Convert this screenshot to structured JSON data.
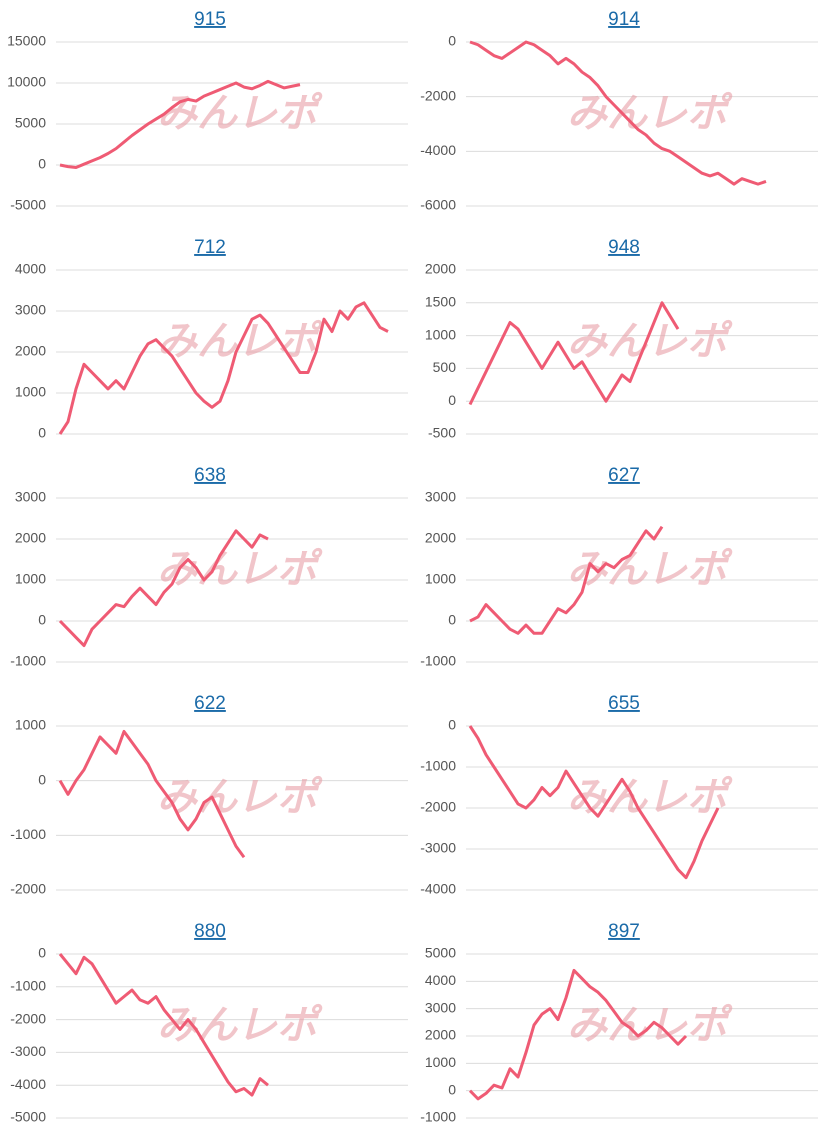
{
  "chart_data": [
    {
      "type": "line",
      "title": "915",
      "watermark": "みんレポ",
      "color": "#ef5b74",
      "grid": true,
      "ylim": [
        -5000,
        15000
      ],
      "yticks": [
        15000,
        10000,
        5000,
        0,
        -5000
      ],
      "values": [
        0,
        -200,
        -300,
        100,
        500,
        900,
        1400,
        2000,
        2800,
        3600,
        4300,
        5000,
        5600,
        6200,
        7000,
        7700,
        8000,
        7800,
        8400,
        8800,
        9200,
        9600,
        10000,
        9500,
        9300,
        9700,
        10200,
        9800,
        9400,
        9600,
        9800
      ]
    },
    {
      "type": "line",
      "title": "914",
      "watermark": "みんレポ",
      "color": "#ef5b74",
      "grid": true,
      "ylim": [
        -6000,
        0
      ],
      "yticks": [
        0,
        -2000,
        -4000,
        -6000
      ],
      "values": [
        0,
        -100,
        -300,
        -500,
        -600,
        -400,
        -200,
        0,
        -100,
        -300,
        -500,
        -800,
        -600,
        -800,
        -1100,
        -1300,
        -1600,
        -2000,
        -2300,
        -2600,
        -2900,
        -3200,
        -3400,
        -3700,
        -3900,
        -4000,
        -4200,
        -4400,
        -4600,
        -4800,
        -4900,
        -4800,
        -5000,
        -5200,
        -5000,
        -5100,
        -5200,
        -5100
      ]
    },
    {
      "type": "line",
      "title": "712",
      "watermark": "みんレポ",
      "color": "#ef5b74",
      "grid": true,
      "ylim": [
        0,
        4000
      ],
      "yticks": [
        4000,
        3000,
        2000,
        1000,
        0
      ],
      "values": [
        0,
        300,
        1100,
        1700,
        1500,
        1300,
        1100,
        1300,
        1100,
        1500,
        1900,
        2200,
        2300,
        2100,
        1900,
        1600,
        1300,
        1000,
        800,
        650,
        800,
        1300,
        2000,
        2400,
        2800,
        2900,
        2700,
        2400,
        2100,
        1800,
        1500,
        1500,
        2000,
        2800,
        2500,
        3000,
        2800,
        3100,
        3200,
        2900,
        2600,
        2500
      ]
    },
    {
      "type": "line",
      "title": "948",
      "watermark": "みんレポ",
      "color": "#ef5b74",
      "grid": true,
      "ylim": [
        -500,
        2000
      ],
      "yticks": [
        2000,
        1500,
        1000,
        500,
        0,
        -500
      ],
      "values": [
        -50,
        200,
        450,
        700,
        950,
        1200,
        1100,
        900,
        700,
        500,
        700,
        900,
        700,
        500,
        600,
        400,
        200,
        0,
        200,
        400,
        300,
        600,
        900,
        1200,
        1500,
        1300,
        1100
      ]
    },
    {
      "type": "line",
      "title": "638",
      "watermark": "みんレポ",
      "color": "#ef5b74",
      "grid": true,
      "ylim": [
        -1000,
        3000
      ],
      "yticks": [
        3000,
        2000,
        1000,
        0,
        -1000
      ],
      "values": [
        0,
        -200,
        -400,
        -600,
        -200,
        0,
        200,
        400,
        350,
        600,
        800,
        600,
        400,
        700,
        900,
        1300,
        1500,
        1300,
        1000,
        1200,
        1600,
        1900,
        2200,
        2000,
        1800,
        2100,
        2000
      ]
    },
    {
      "type": "line",
      "title": "627",
      "watermark": "みんレポ",
      "color": "#ef5b74",
      "grid": true,
      "ylim": [
        -1000,
        3000
      ],
      "yticks": [
        3000,
        2000,
        1000,
        0,
        -1000
      ],
      "values": [
        0,
        100,
        400,
        200,
        0,
        -200,
        -300,
        -100,
        -300,
        -300,
        0,
        300,
        200,
        400,
        700,
        1400,
        1200,
        1400,
        1300,
        1500,
        1600,
        1900,
        2200,
        2000,
        2300
      ]
    },
    {
      "type": "line",
      "title": "622",
      "watermark": "みんレポ",
      "color": "#ef5b74",
      "grid": true,
      "ylim": [
        -2000,
        1000
      ],
      "yticks": [
        1000,
        0,
        -1000,
        -2000
      ],
      "values": [
        0,
        -250,
        0,
        200,
        500,
        800,
        650,
        500,
        900,
        700,
        500,
        300,
        0,
        -200,
        -400,
        -700,
        -900,
        -700,
        -400,
        -300,
        -600,
        -900,
        -1200,
        -1400
      ]
    },
    {
      "type": "line",
      "title": "655",
      "watermark": "みんレポ",
      "color": "#ef5b74",
      "grid": true,
      "ylim": [
        -4000,
        0
      ],
      "yticks": [
        0,
        -1000,
        -2000,
        -3000,
        -4000
      ],
      "values": [
        0,
        -300,
        -700,
        -1000,
        -1300,
        -1600,
        -1900,
        -2000,
        -1800,
        -1500,
        -1700,
        -1500,
        -1100,
        -1400,
        -1700,
        -2000,
        -2200,
        -1900,
        -1600,
        -1300,
        -1600,
        -2000,
        -2300,
        -2600,
        -2900,
        -3200,
        -3500,
        -3700,
        -3300,
        -2800,
        -2400,
        -2000
      ]
    },
    {
      "type": "line",
      "title": "880",
      "watermark": "みんレポ",
      "color": "#ef5b74",
      "grid": true,
      "ylim": [
        -5000,
        0
      ],
      "yticks": [
        0,
        -1000,
        -2000,
        -3000,
        -4000,
        -5000
      ],
      "values": [
        0,
        -300,
        -600,
        -100,
        -300,
        -700,
        -1100,
        -1500,
        -1300,
        -1100,
        -1400,
        -1500,
        -1300,
        -1700,
        -2000,
        -2300,
        -2000,
        -2300,
        -2700,
        -3100,
        -3500,
        -3900,
        -4200,
        -4100,
        -4300,
        -3800,
        -4000
      ]
    },
    {
      "type": "line",
      "title": "897",
      "watermark": "みんレポ",
      "color": "#ef5b74",
      "grid": true,
      "ylim": [
        -1000,
        5000
      ],
      "yticks": [
        5000,
        4000,
        3000,
        2000,
        1000,
        0,
        -1000
      ],
      "values": [
        0,
        -300,
        -100,
        200,
        100,
        800,
        500,
        1400,
        2400,
        2800,
        3000,
        2600,
        3400,
        4400,
        4100,
        3800,
        3600,
        3300,
        2900,
        2500,
        2300,
        2000,
        2200,
        2500,
        2300,
        2000,
        1700,
        2000
      ]
    }
  ]
}
